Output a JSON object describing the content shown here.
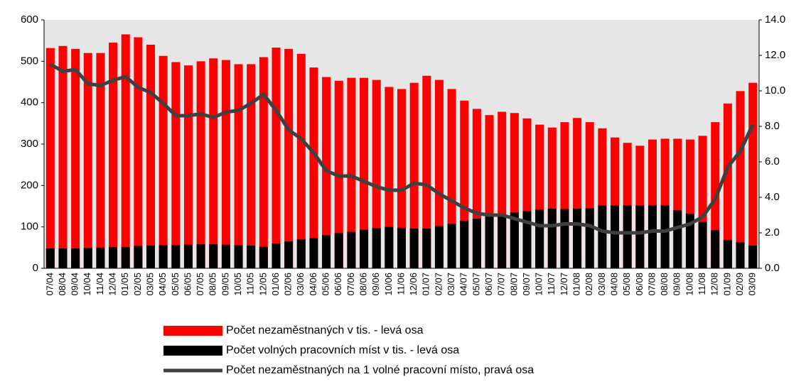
{
  "chart_data": {
    "type": "bar_line",
    "categories": [
      "07/04",
      "08/04",
      "09/04",
      "10/04",
      "11/04",
      "12/04",
      "01/05",
      "02/05",
      "03/05",
      "04/05",
      "05/05",
      "06/05",
      "07/05",
      "08/05",
      "09/05",
      "10/05",
      "11/05",
      "12/05",
      "01/06",
      "02/06",
      "03/06",
      "04/06",
      "05/06",
      "06/06",
      "07/06",
      "08/06",
      "09/06",
      "10/06",
      "11/06",
      "12/06",
      "01/07",
      "02/07",
      "03/07",
      "04/07",
      "05/07",
      "06/07",
      "07/07",
      "08/07",
      "09/07",
      "10/07",
      "11/07",
      "12/07",
      "01/08",
      "02/08",
      "03/08",
      "04/08",
      "05/08",
      "06/08",
      "07/08",
      "08/08",
      "09/08",
      "10/08",
      "11/08",
      "12/08",
      "01/09",
      "02/09",
      "03/09"
    ],
    "series": [
      {
        "name": "Počet nezaměstnaných v  tis. - levá osa",
        "color": "#ff0000",
        "kind": "bar",
        "values": [
          532,
          537,
          530,
          520,
          520,
          545,
          565,
          558,
          540,
          513,
          498,
          490,
          500,
          507,
          503,
          493,
          493,
          510,
          533,
          530,
          518,
          485,
          462,
          453,
          460,
          460,
          455,
          438,
          433,
          448,
          465,
          455,
          433,
          405,
          385,
          370,
          378,
          375,
          362,
          347,
          340,
          353,
          363,
          353,
          338,
          316,
          303,
          296,
          311,
          313,
          313,
          311,
          320,
          353,
          398,
          428,
          448
        ]
      },
      {
        "name": "Počet volných pracovních míst v  tis. - levá osa",
        "color": "#000000",
        "kind": "bar",
        "values": [
          48,
          48,
          48,
          49,
          50,
          51,
          51,
          54,
          55,
          56,
          56,
          57,
          58,
          58,
          57,
          56,
          55,
          52,
          60,
          65,
          70,
          73,
          80,
          85,
          88,
          93,
          97,
          100,
          98,
          96,
          96,
          102,
          108,
          115,
          120,
          125,
          130,
          135,
          138,
          142,
          144,
          143,
          144,
          145,
          152,
          152,
          152,
          152,
          152,
          152,
          140,
          132,
          112,
          92,
          68,
          63,
          55
        ]
      },
      {
        "name": "Počet nezaměstnaných na 1 volné pracovní místo,  pravá osa",
        "color": "#404040",
        "kind": "line",
        "axis": "y2",
        "values": [
          11.5,
          11.1,
          11.2,
          10.4,
          10.3,
          10.6,
          10.8,
          10.2,
          9.9,
          9.3,
          8.6,
          8.6,
          8.7,
          8.5,
          8.8,
          8.9,
          9.3,
          9.8,
          8.9,
          7.8,
          7.3,
          6.5,
          5.5,
          5.2,
          5.2,
          4.9,
          4.6,
          4.4,
          4.4,
          4.8,
          4.7,
          4.2,
          3.8,
          3.4,
          3.1,
          3.0,
          3.0,
          2.8,
          2.6,
          2.4,
          2.4,
          2.5,
          2.5,
          2.4,
          2.1,
          2.0,
          2.0,
          2.0,
          2.1,
          2.1,
          2.3,
          2.5,
          2.9,
          3.9,
          5.7,
          6.6,
          8.1
        ]
      }
    ],
    "ylim": [
      0,
      600
    ],
    "yticks": [
      0,
      100,
      200,
      300,
      400,
      500,
      600
    ],
    "y2lim": [
      0,
      14
    ],
    "y2ticks": [
      {
        "value": 0,
        "label": "0.0"
      },
      {
        "value": 2,
        "label": "2.0"
      },
      {
        "value": 4,
        "label": "4.0"
      },
      {
        "value": 6,
        "label": "6.0"
      },
      {
        "value": 8,
        "label": "8.0"
      },
      {
        "value": 10,
        "label": "10.0"
      },
      {
        "value": 12,
        "label": "12.0"
      },
      {
        "value": 14,
        "label": "14.0"
      }
    ],
    "plot_background": "#e6e6e6"
  }
}
